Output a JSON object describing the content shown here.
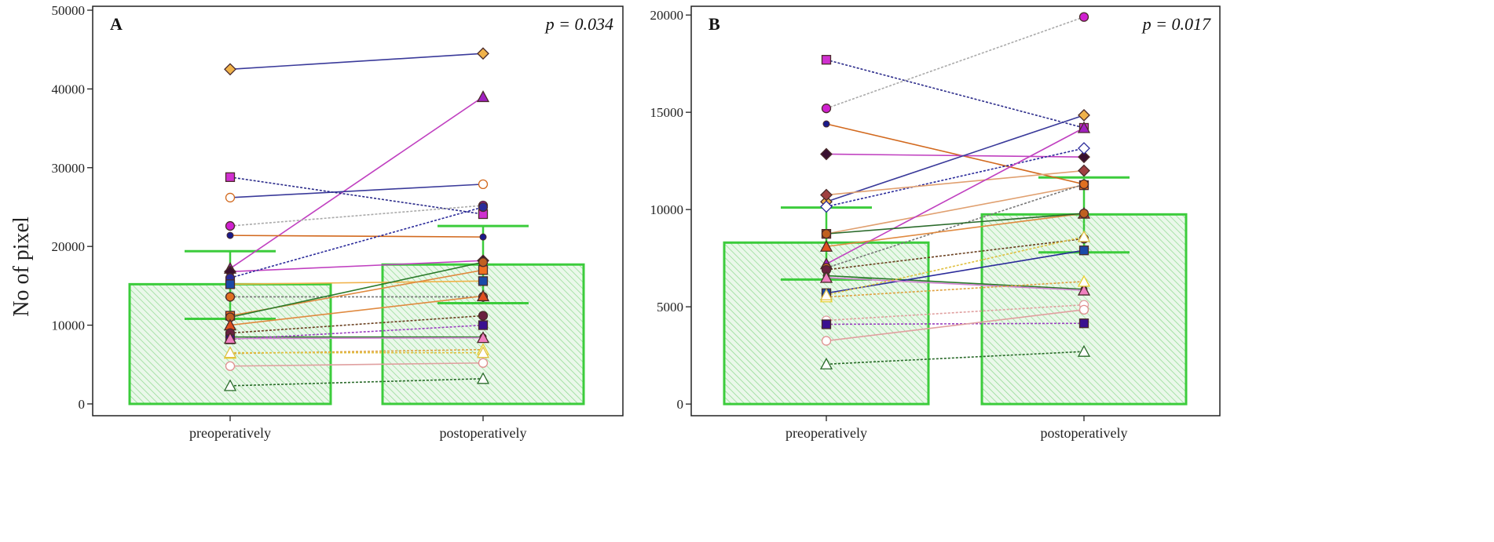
{
  "y_axis_label": "No of  pixel",
  "chart_data": [
    {
      "type": "bar",
      "panel_label": "A",
      "p_value_label": "p = 0.034",
      "categories": [
        "preoperatively",
        "postoperatively"
      ],
      "yticks": [
        0,
        10000,
        20000,
        30000,
        40000,
        50000
      ],
      "ylim": [
        -1500,
        50500
      ],
      "grid": false,
      "bar_style": {
        "edge": "#3ccc3c",
        "hatch": "#7fd67f",
        "fill": "#e8f7e8"
      },
      "means": [
        15200,
        17700
      ],
      "error_bars": [
        {
          "low": 10800,
          "high": 19400
        },
        {
          "low": 12800,
          "high": 22600
        }
      ],
      "series": [
        {
          "pre": 42500,
          "post": 44500,
          "color": "#3a3a9a",
          "marker": "diamond",
          "mfill": "#f0b24a",
          "dash": false
        },
        {
          "pre": 17200,
          "post": 39000,
          "color": "#c040c0",
          "marker": "triangle",
          "mfill": "#a020c0",
          "dash": false
        },
        {
          "pre": 26200,
          "post": 27900,
          "color": "#3a3a9a",
          "marker": "circle",
          "mfill": "#ffffff",
          "mstroke": "#d2691e",
          "dash": false
        },
        {
          "pre": 28800,
          "post": 24100,
          "color": "#2a2a8a",
          "marker": "square",
          "mfill": "#d030d0",
          "dash": true
        },
        {
          "pre": 22600,
          "post": 25200,
          "color": "#aaaaaa",
          "marker": "circle",
          "mfill": "#d020d0",
          "dash": true
        },
        {
          "pre": 21400,
          "post": 21200,
          "color": "#d2691e",
          "marker": "dot",
          "mfill": "#1a1a8a",
          "dash": false
        },
        {
          "pre": 16800,
          "post": 18200,
          "color": "#c040c0",
          "marker": "diamond",
          "mfill": "#3a1030",
          "dash": false
        },
        {
          "pre": 16000,
          "post": 25000,
          "color": "#2a2a9a",
          "marker": "circle",
          "mfill": "#2a2a9a",
          "dash": true
        },
        {
          "pre": 15200,
          "post": 15600,
          "color": "#f0b24a",
          "marker": "square",
          "mfill": "#1a4aa8",
          "dash": false
        },
        {
          "pre": 13600,
          "post": 13600,
          "color": "#777777",
          "marker": "circle",
          "mfill": "#e07020",
          "dash": true
        },
        {
          "pre": 11200,
          "post": 17000,
          "color": "#e08a40",
          "marker": "square",
          "mfill": "#f07020",
          "dash": false
        },
        {
          "pre": 11000,
          "post": 18000,
          "color": "#2a7a2a",
          "marker": "circle",
          "mfill": "#c06020",
          "dash": false
        },
        {
          "pre": 10000,
          "post": 13700,
          "color": "#e08a40",
          "marker": "triangle",
          "mfill": "#e05020",
          "dash": false
        },
        {
          "pre": 9000,
          "post": 11200,
          "color": "#6a4020",
          "marker": "circle",
          "mfill": "#6a2040",
          "dash": true
        },
        {
          "pre": 8500,
          "post": 8500,
          "color": "#2a7a2a",
          "marker": "dot",
          "mfill": "#2a7a2a",
          "dash": false
        },
        {
          "pre": 8200,
          "post": 10000,
          "color": "#9a40c0",
          "marker": "square",
          "mfill": "#3a1090",
          "dash": true
        },
        {
          "pre": 8300,
          "post": 8400,
          "color": "#d080d0",
          "marker": "triangle",
          "mfill": "#f080c0",
          "dash": false
        },
        {
          "pre": 6400,
          "post": 6900,
          "color": "#e0a040",
          "marker": "triangle",
          "mfill": "#ffffff",
          "mstroke": "#e8d030",
          "dash": true
        },
        {
          "pre": 6500,
          "post": 6500,
          "color": "#e0c040",
          "marker": "triangle",
          "mfill": "#ffffff",
          "mstroke": "#e0c040",
          "dash": true
        },
        {
          "pre": 4800,
          "post": 5200,
          "color": "#e0a0a0",
          "marker": "circle",
          "mfill": "#ffffff",
          "mstroke": "#e09090",
          "dash": false
        },
        {
          "pre": 2300,
          "post": 3200,
          "color": "#2a6a2a",
          "marker": "triangle",
          "mfill": "#ffffff",
          "mstroke": "#2a6a2a",
          "dash": true
        }
      ]
    },
    {
      "type": "bar",
      "panel_label": "B",
      "p_value_label": "p = 0.017",
      "categories": [
        "preoperatively",
        "postoperatively"
      ],
      "yticks": [
        0,
        5000,
        10000,
        15000,
        20000
      ],
      "ylim": [
        -600,
        20450
      ],
      "grid": false,
      "bar_style": {
        "edge": "#3ccc3c",
        "hatch": "#7fd67f",
        "fill": "#e8f7e8"
      },
      "means": [
        8300,
        9750
      ],
      "error_bars": [
        {
          "low": 6400,
          "high": 10100
        },
        {
          "low": 7800,
          "high": 11650
        }
      ],
      "series": [
        {
          "pre": 15200,
          "post": 19900,
          "color": "#aaaaaa",
          "marker": "circle",
          "mfill": "#d020d0",
          "dash": true
        },
        {
          "pre": 17700,
          "post": 14200,
          "color": "#2a2a8a",
          "marker": "square",
          "mfill": "#d030d0",
          "dash": true
        },
        {
          "pre": 14400,
          "post": 11300,
          "color": "#d2691e",
          "marker": "dot",
          "mfill": "#1a1a8a",
          "dash": false
        },
        {
          "pre": 12850,
          "post": 12700,
          "color": "#c040c0",
          "marker": "diamond",
          "mfill": "#3a1030",
          "dash": false
        },
        {
          "pre": 10400,
          "post": 14850,
          "color": "#3a3a9a",
          "marker": "diamond",
          "mfill": "#f0b24a",
          "dash": false
        },
        {
          "pre": 10150,
          "post": 13150,
          "color": "#2a2a9a",
          "marker": "diamond",
          "mfill": "#ffffff",
          "mstroke": "#2a2a9a",
          "dash": true
        },
        {
          "pre": 10750,
          "post": 12000,
          "color": "#e0a070",
          "marker": "diamond",
          "mfill": "#a04040",
          "dash": false
        },
        {
          "pre": 8750,
          "post": 11250,
          "color": "#e0a070",
          "marker": "square",
          "mfill": "#f07020",
          "dash": false
        },
        {
          "pre": 7200,
          "post": 14200,
          "color": "#c040c0",
          "marker": "triangle",
          "mfill": "#a020c0",
          "dash": false
        },
        {
          "pre": 7000,
          "post": 11300,
          "color": "#777777",
          "marker": "circle",
          "mfill": "#e07020",
          "dash": true
        },
        {
          "pre": 8100,
          "post": 9800,
          "color": "#e08a40",
          "marker": "triangle",
          "mfill": "#e05020",
          "dash": false
        },
        {
          "pre": 8750,
          "post": 9800,
          "color": "#2a6a2a",
          "marker": "circle",
          "mfill": "#c06020",
          "dash": false
        },
        {
          "pre": 6900,
          "post": 8500,
          "color": "#6a4020",
          "marker": "circle",
          "mfill": "#6a2040",
          "dash": true
        },
        {
          "pre": 6600,
          "post": 5900,
          "color": "#2a7a2a",
          "marker": "dot",
          "mfill": "#2a7a2a",
          "dash": false
        },
        {
          "pre": 5700,
          "post": 7900,
          "color": "#2a2a9a",
          "marker": "square",
          "mfill": "#1a4aa8",
          "dash": false
        },
        {
          "pre": 6500,
          "post": 5850,
          "color": "#d080d0",
          "marker": "triangle",
          "mfill": "#f080c0",
          "dash": false
        },
        {
          "pre": 5500,
          "post": 6300,
          "color": "#e0a040",
          "marker": "triangle",
          "mfill": "#ffffff",
          "mstroke": "#e8d030",
          "dash": true
        },
        {
          "pre": 5600,
          "post": 8600,
          "color": "#e0c040",
          "marker": "triangle",
          "mfill": "#ffffff",
          "mstroke": "#e0c040",
          "dash": true
        },
        {
          "pre": 4300,
          "post": 5100,
          "color": "#e0a0a0",
          "marker": "circle",
          "mfill": "#ffffff",
          "mstroke": "#e0a0a0",
          "dash": true
        },
        {
          "pre": 4100,
          "post": 4150,
          "color": "#9a40c0",
          "marker": "square",
          "mfill": "#3a1090",
          "dash": true
        },
        {
          "pre": 3250,
          "post": 4850,
          "color": "#e0a0a0",
          "marker": "circle",
          "mfill": "#ffffff",
          "mstroke": "#e09090",
          "dash": false
        },
        {
          "pre": 2050,
          "post": 2700,
          "color": "#2a6a2a",
          "marker": "triangle",
          "mfill": "#ffffff",
          "mstroke": "#2a6a2a",
          "dash": true
        }
      ]
    }
  ]
}
